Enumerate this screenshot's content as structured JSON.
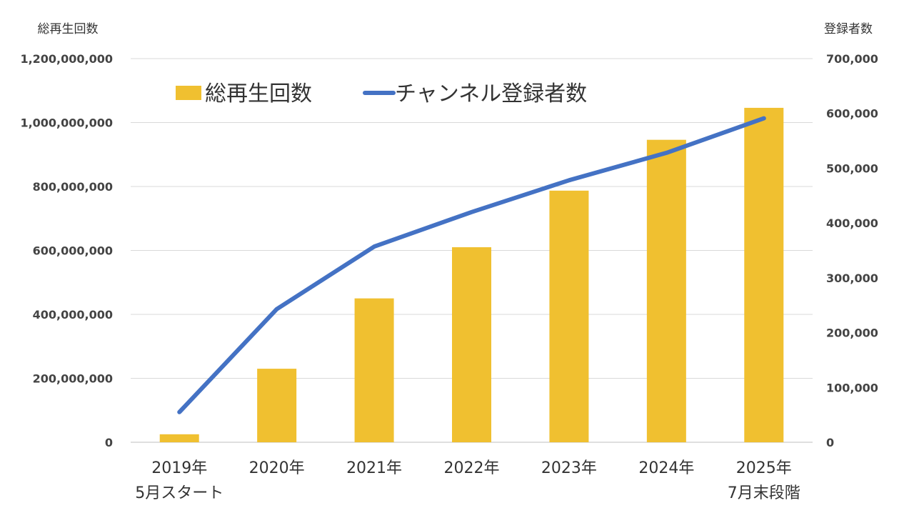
{
  "chart_data": {
    "type": "bar",
    "categories": [
      [
        "2019年",
        "5月スタート"
      ],
      [
        "2020年"
      ],
      [
        "2021年"
      ],
      [
        "2022年"
      ],
      [
        "2023年"
      ],
      [
        "2024年"
      ],
      [
        "2025年",
        "7月末段階"
      ]
    ],
    "series": [
      {
        "name": "総再生回数",
        "type": "bar",
        "axis": "left",
        "color": "#F0C030",
        "values": [
          25000000,
          230000000,
          450000000,
          610000000,
          787000000,
          946000000,
          1046000000
        ]
      },
      {
        "name": "チャンネル登録者数",
        "type": "line",
        "axis": "right",
        "color": "#4472C4",
        "values": [
          55000,
          243000,
          357000,
          420000,
          478000,
          528000,
          591000
        ]
      }
    ],
    "left_axis": {
      "title": "総再生回数",
      "ylim": [
        0,
        1200000000
      ],
      "ticks": [
        "0",
        "200,000,000",
        "400,000,000",
        "600,000,000",
        "800,000,000",
        "1,000,000,000",
        "1,200,000,000"
      ]
    },
    "right_axis": {
      "title": "登録者数",
      "ylim": [
        0,
        700000
      ],
      "ticks": [
        "0",
        "100,000",
        "200,000",
        "300,000",
        "400,000",
        "500,000",
        "600,000",
        "700,000"
      ]
    },
    "grid": true,
    "legend": "top-left"
  }
}
